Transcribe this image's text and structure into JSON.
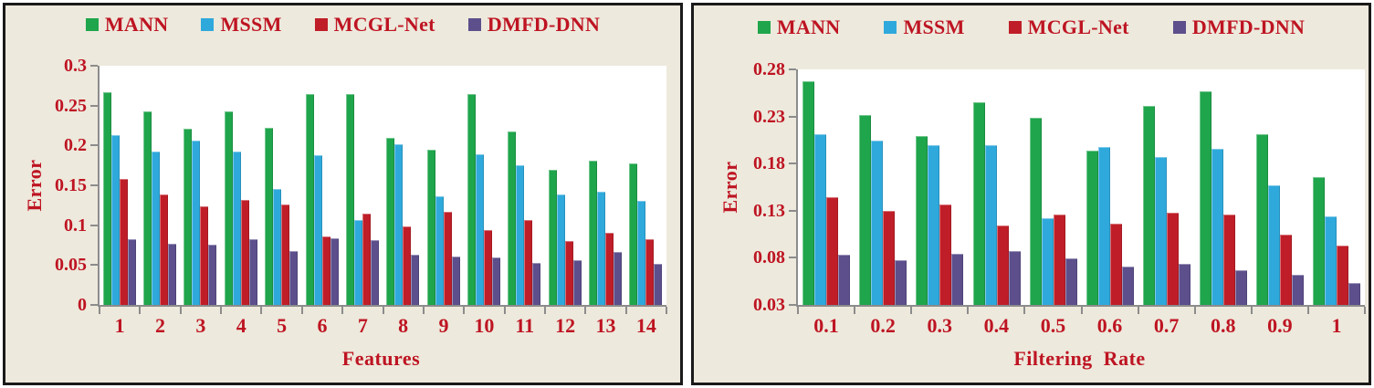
{
  "colors": {
    "text_red": "#BE1422",
    "axis_gray": "#8C8C8C",
    "panel_background": "#EDE9DC",
    "panel_border": "#1A1A1A",
    "series_green": "#1FA54B",
    "series_blue": "#2FA9DC",
    "series_red": "#BF1E28",
    "series_purple": "#5C4F8C"
  },
  "legend": {
    "items": [
      {
        "label": "MANN",
        "color": "#1FA54B"
      },
      {
        "label": "MSSM",
        "color": "#2FA9DC"
      },
      {
        "label": "MCGL-Net",
        "color": "#BF1E28"
      },
      {
        "label": "DMFD-DNN",
        "color": "#5C4F8C"
      }
    ]
  },
  "chart_data": [
    {
      "type": "bar",
      "title": "",
      "xlabel": "Features",
      "ylabel": "Error",
      "categories": [
        "1",
        "2",
        "3",
        "4",
        "5",
        "6",
        "7",
        "8",
        "9",
        "10",
        "11",
        "12",
        "13",
        "14"
      ],
      "series": [
        {
          "name": "MANN",
          "color": "#1FA54B",
          "values": [
            0.267,
            0.243,
            0.221,
            0.243,
            0.222,
            0.265,
            0.265,
            0.21,
            0.195,
            0.265,
            0.218,
            0.17,
            0.181,
            0.178
          ]
        },
        {
          "name": "MSSM",
          "color": "#2FA9DC",
          "values": [
            0.213,
            0.192,
            0.206,
            0.192,
            0.145,
            0.188,
            0.107,
            0.202,
            0.136,
            0.189,
            0.175,
            0.138,
            0.142,
            0.13
          ]
        },
        {
          "name": "MCGL-Net",
          "color": "#BF1E28",
          "values": [
            0.158,
            0.138,
            0.124,
            0.132,
            0.126,
            0.086,
            0.114,
            0.099,
            0.117,
            0.094,
            0.107,
            0.08,
            0.09,
            0.083
          ]
        },
        {
          "name": "DMFD-DNN",
          "color": "#5C4F8C",
          "values": [
            0.083,
            0.077,
            0.075,
            0.083,
            0.068,
            0.084,
            0.081,
            0.063,
            0.061,
            0.059,
            0.053,
            0.056,
            0.066,
            0.052
          ]
        }
      ],
      "ylim": [
        0,
        0.3
      ],
      "yticks": [
        0,
        0.05,
        0.1,
        0.15,
        0.2,
        0.25,
        0.3
      ],
      "ytick_labels": [
        "0",
        "0.05",
        "0.1",
        "0.15",
        "0.2",
        "0.25",
        "0.3"
      ],
      "grid": false,
      "legend_position": "top"
    },
    {
      "type": "bar",
      "title": "",
      "xlabel": "Filtering Rate",
      "ylabel": "Error",
      "categories": [
        "0.1",
        "0.2",
        "0.3",
        "0.4",
        "0.5",
        "0.6",
        "0.7",
        "0.8",
        "0.9",
        "1"
      ],
      "series": [
        {
          "name": "MANN",
          "color": "#1FA54B",
          "values": [
            0.267,
            0.232,
            0.209,
            0.245,
            0.229,
            0.194,
            0.241,
            0.257,
            0.211,
            0.166
          ]
        },
        {
          "name": "MSSM",
          "color": "#2FA9DC",
          "values": [
            0.211,
            0.204,
            0.2,
            0.2,
            0.122,
            0.198,
            0.187,
            0.196,
            0.157,
            0.124
          ]
        },
        {
          "name": "MCGL-Net",
          "color": "#BF1E28",
          "values": [
            0.144,
            0.13,
            0.137,
            0.114,
            0.126,
            0.116,
            0.128,
            0.126,
            0.105,
            0.093
          ]
        },
        {
          "name": "DMFD-DNN",
          "color": "#5C4F8C",
          "values": [
            0.083,
            0.077,
            0.084,
            0.087,
            0.079,
            0.071,
            0.074,
            0.067,
            0.062,
            0.053
          ]
        }
      ],
      "ylim": [
        0.03,
        0.28
      ],
      "yticks": [
        0.03,
        0.08,
        0.13,
        0.18,
        0.23,
        0.28
      ],
      "ytick_labels": [
        "0.03",
        "0.08",
        "0.13",
        "0.18",
        "0.23",
        "0.28"
      ],
      "grid": false,
      "legend_position": "top"
    }
  ]
}
